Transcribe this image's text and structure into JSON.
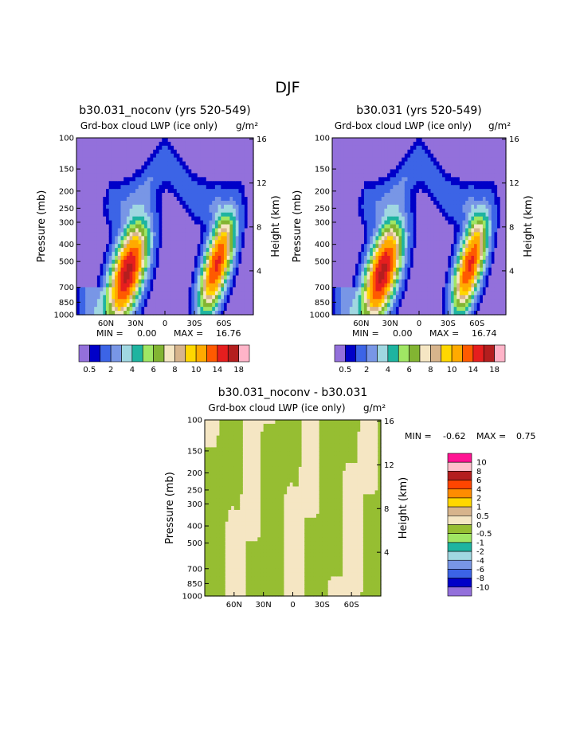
{
  "page_title": "DJF",
  "panels": [
    {
      "title": "b30.031_noconv (yrs 520-549)",
      "subtitle": "Grd-box cloud LWP (ice only)",
      "units": "g/m²",
      "ylabel_left": "Pressure (mb)",
      "ylabel_right": "Height (km)",
      "min_label": "MIN =",
      "min_value": "0.00",
      "max_label": "MAX =",
      "max_value": "16.76",
      "peaks": [
        {
          "lat": -38,
          "p": 580,
          "value": 16.76
        },
        {
          "lat": 53,
          "p": 520,
          "value": 14.5
        }
      ]
    },
    {
      "title": "b30.031 (yrs 520-549)",
      "subtitle": "Grd-box cloud LWP (ice only)",
      "units": "g/m²",
      "ylabel_left": "Pressure (mb)",
      "ylabel_right": "Height (km)",
      "min_label": "MIN =",
      "min_value": "0.00",
      "max_label": "MAX =",
      "max_value": "16.74",
      "peaks": [
        {
          "lat": -38,
          "p": 580,
          "value": 16.74
        },
        {
          "lat": 53,
          "p": 520,
          "value": 14.4
        }
      ]
    },
    {
      "title": "b30.031_noconv - b30.031",
      "subtitle": "Grd-box cloud LWP (ice only)",
      "units": "g/m²",
      "ylabel_left": "Pressure (mb)",
      "ylabel_right": "Height (km)",
      "min_label": "MIN =",
      "min_value": "-0.62",
      "max_label": "MAX =",
      "max_value": "0.75"
    }
  ],
  "x_ticks": [
    "60N",
    "30N",
    "0",
    "30S",
    "60S"
  ],
  "y_ticks_pressure": [
    "100",
    "150",
    "200",
    "250",
    "300",
    "400",
    "500",
    "700",
    "850",
    "1000"
  ],
  "y_ticks_height": [
    "16",
    "12",
    "8",
    "4"
  ],
  "levels_abs": [
    0.5,
    1,
    2,
    3,
    4,
    5,
    6,
    7,
    8,
    9,
    10,
    12,
    14,
    16,
    18
  ],
  "levels_abs_labels": [
    "0.5",
    "2",
    "4",
    "6",
    "8",
    "10",
    "14",
    "18"
  ],
  "colors_abs": [
    "#9370db",
    "#0000c8",
    "#3c64e6",
    "#7896e6",
    "#a0d7e1",
    "#1eb4a0",
    "#a0e664",
    "#82b432",
    "#f5e6c3",
    "#d7b48c",
    "#ffd700",
    "#ffaa00",
    "#ff5a00",
    "#e61e1e",
    "#b41e1e",
    "#ffb4c8",
    "#ff1493"
  ],
  "levels_diff_labels": [
    "10",
    "8",
    "6",
    "4",
    "2",
    "1",
    "0.5",
    "0",
    "-0.5",
    "-1",
    "-2",
    "-4",
    "-6",
    "-8",
    "-10"
  ],
  "colors_diff": [
    "#ff1493",
    "#ffc0cb",
    "#b41e1e",
    "#ff4500",
    "#ff8c00",
    "#ffd700",
    "#d7b48c",
    "#f5e6c3",
    "#96be32",
    "#a0e664",
    "#1eb4a0",
    "#a0d7e1",
    "#7896e6",
    "#3c64e6",
    "#0000c8",
    "#9370db"
  ],
  "chart_data": [
    {
      "type": "heatmap",
      "title": "b30.031_noconv (yrs 520-549)",
      "xlabel": "",
      "ylabel": "Pressure (mb)",
      "xlim": [
        "90N",
        "90S"
      ],
      "ylim": [
        1000,
        100
      ],
      "y_scale": "log",
      "min": 0.0,
      "max": 16.76,
      "levels": [
        0.5,
        1,
        2,
        3,
        4,
        5,
        6,
        7,
        8,
        9,
        10,
        12,
        14,
        16,
        18
      ]
    },
    {
      "type": "heatmap",
      "title": "b30.031 (yrs 520-549)",
      "xlabel": "",
      "ylabel": "Pressure (mb)",
      "xlim": [
        "90N",
        "90S"
      ],
      "ylim": [
        1000,
        100
      ],
      "y_scale": "log",
      "min": 0.0,
      "max": 16.74,
      "levels": [
        0.5,
        1,
        2,
        3,
        4,
        5,
        6,
        7,
        8,
        9,
        10,
        12,
        14,
        16,
        18
      ]
    },
    {
      "type": "heatmap",
      "title": "b30.031_noconv - b30.031",
      "xlabel": "",
      "ylabel": "Pressure (mb)",
      "xlim": [
        "90N",
        "90S"
      ],
      "ylim": [
        1000,
        100
      ],
      "y_scale": "log",
      "min": -0.62,
      "max": 0.75,
      "levels": [
        -10,
        -8,
        -6,
        -4,
        -2,
        -1,
        -0.5,
        0,
        0.5,
        1,
        2,
        4,
        6,
        8,
        10
      ]
    }
  ]
}
